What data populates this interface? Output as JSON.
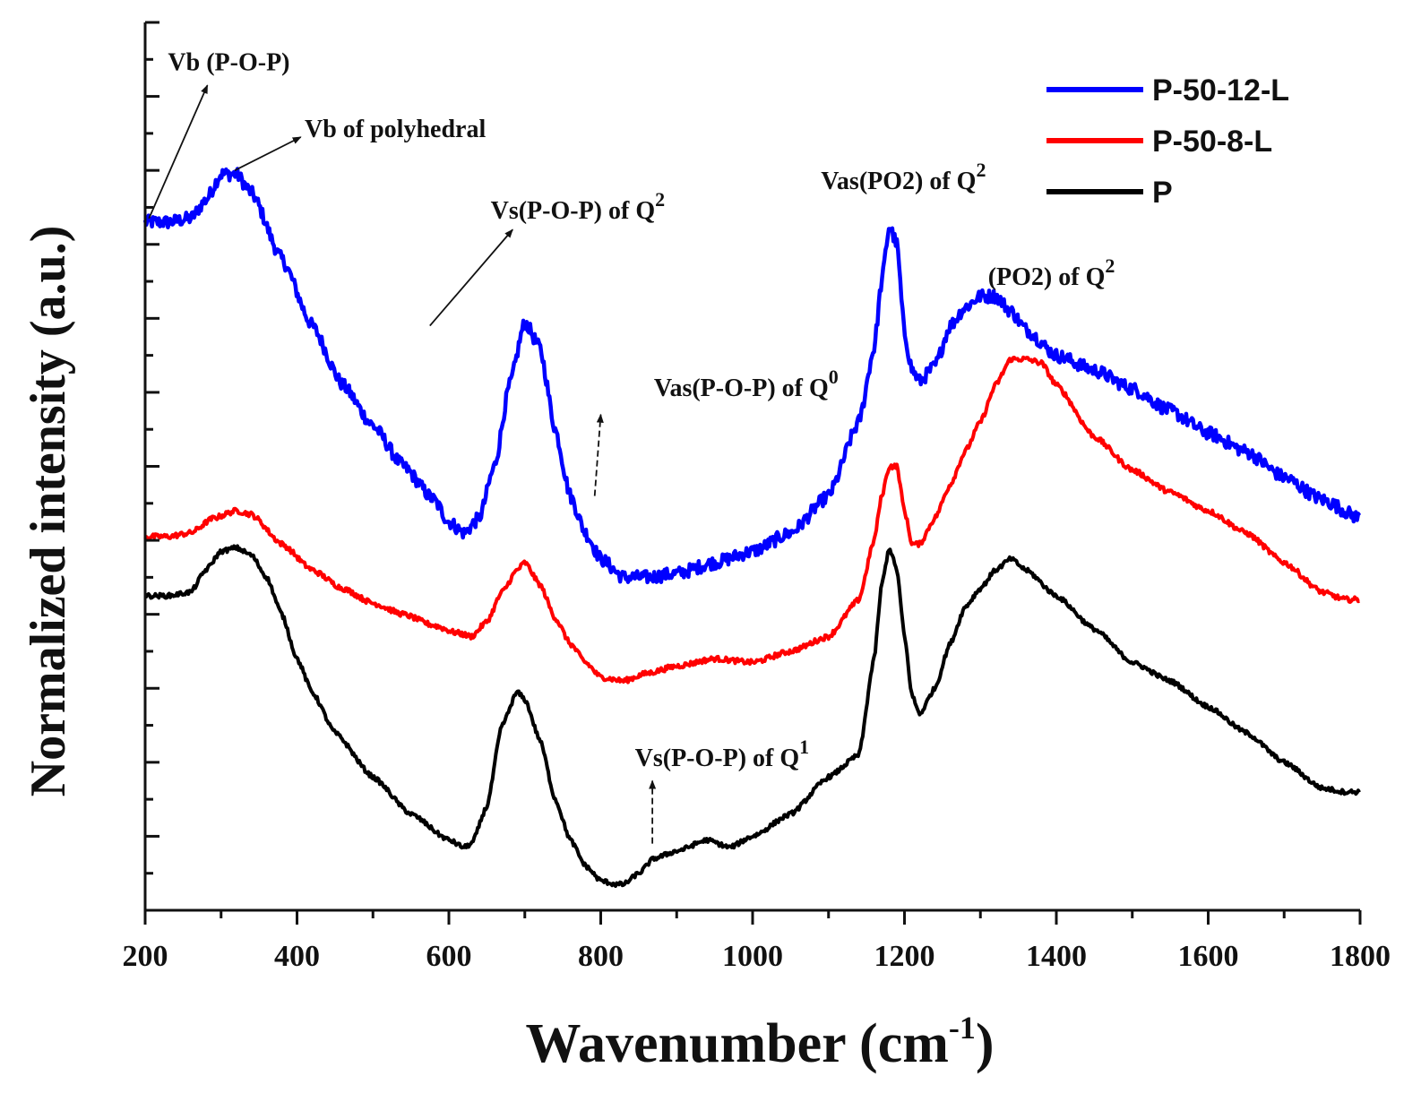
{
  "chart_data": {
    "type": "line",
    "title": "",
    "xlabel": "Wavenumber (cm",
    "xlabel_sup": "-1",
    "xlabel_close": ")",
    "ylabel": "Normalized intensity (a.u.)",
    "xlim": [
      200,
      1800
    ],
    "ylim": [
      0,
      12
    ],
    "x_ticks": [
      200,
      400,
      600,
      800,
      1000,
      1200,
      1400,
      1600,
      1800
    ],
    "grid": false,
    "legend_position": "top-right",
    "series": [
      {
        "name": "P-50-12-L",
        "color": "#0000ff",
        "x": [
          200,
          230,
          260,
          280,
          300,
          320,
          340,
          380,
          420,
          460,
          500,
          540,
          580,
          600,
          620,
          640,
          660,
          680,
          700,
          720,
          740,
          760,
          780,
          800,
          830,
          860,
          900,
          950,
          1000,
          1050,
          1100,
          1140,
          1160,
          1170,
          1180,
          1190,
          1200,
          1210,
          1220,
          1240,
          1260,
          1280,
          1300,
          1320,
          1340,
          1360,
          1400,
          1450,
          1500,
          1550,
          1600,
          1650,
          1700,
          1750,
          1800
        ],
        "values": [
          9.3,
          9.3,
          9.35,
          9.6,
          9.95,
          9.95,
          9.7,
          8.8,
          7.9,
          7.1,
          6.55,
          6.0,
          5.55,
          5.25,
          5.1,
          5.3,
          6.0,
          7.1,
          7.95,
          7.6,
          6.5,
          5.6,
          5.1,
          4.75,
          4.5,
          4.5,
          4.55,
          4.7,
          4.85,
          5.1,
          5.6,
          6.6,
          7.6,
          8.5,
          9.25,
          9.0,
          7.8,
          7.3,
          7.15,
          7.35,
          7.9,
          8.15,
          8.3,
          8.3,
          8.1,
          7.85,
          7.5,
          7.3,
          7.05,
          6.75,
          6.45,
          6.2,
          5.85,
          5.55,
          5.3
        ]
      },
      {
        "name": "P-50-8-L",
        "color": "#ff0000",
        "x": [
          200,
          230,
          260,
          290,
          320,
          340,
          380,
          420,
          460,
          500,
          540,
          580,
          610,
          630,
          650,
          670,
          690,
          700,
          720,
          740,
          760,
          780,
          800,
          830,
          860,
          900,
          950,
          1000,
          1050,
          1100,
          1140,
          1160,
          1170,
          1180,
          1190,
          1200,
          1210,
          1220,
          1240,
          1260,
          1280,
          1300,
          1320,
          1340,
          1360,
          1380,
          1400,
          1450,
          1500,
          1550,
          1600,
          1650,
          1700,
          1750,
          1780,
          1800
        ],
        "values": [
          5.05,
          5.05,
          5.1,
          5.3,
          5.4,
          5.35,
          4.95,
          4.6,
          4.35,
          4.15,
          4.0,
          3.85,
          3.75,
          3.7,
          3.9,
          4.3,
          4.6,
          4.7,
          4.4,
          3.95,
          3.6,
          3.35,
          3.15,
          3.1,
          3.2,
          3.3,
          3.4,
          3.35,
          3.5,
          3.7,
          4.2,
          5.0,
          5.6,
          6.0,
          6.0,
          5.4,
          4.95,
          4.95,
          5.3,
          5.75,
          6.2,
          6.6,
          7.1,
          7.45,
          7.45,
          7.4,
          7.1,
          6.4,
          5.95,
          5.65,
          5.4,
          5.1,
          4.7,
          4.3,
          4.2,
          4.2
        ]
      },
      {
        "name": "P",
        "color": "#000000",
        "x": [
          200,
          230,
          260,
          280,
          300,
          320,
          340,
          360,
          380,
          400,
          420,
          450,
          500,
          550,
          600,
          620,
          630,
          650,
          670,
          690,
          700,
          720,
          740,
          760,
          780,
          800,
          820,
          830,
          850,
          870,
          900,
          940,
          970,
          1000,
          1050,
          1100,
          1140,
          1160,
          1170,
          1180,
          1190,
          1200,
          1210,
          1220,
          1240,
          1260,
          1280,
          1300,
          1320,
          1340,
          1360,
          1400,
          1450,
          1500,
          1550,
          1600,
          1650,
          1700,
          1750,
          1780,
          1800
        ],
        "values": [
          4.25,
          4.25,
          4.3,
          4.6,
          4.85,
          4.9,
          4.8,
          4.5,
          4.0,
          3.4,
          2.95,
          2.4,
          1.8,
          1.3,
          0.95,
          0.85,
          0.9,
          1.4,
          2.5,
          2.95,
          2.85,
          2.3,
          1.5,
          0.95,
          0.6,
          0.4,
          0.35,
          0.35,
          0.5,
          0.7,
          0.8,
          0.95,
          0.85,
          1.0,
          1.3,
          1.8,
          2.1,
          3.4,
          4.4,
          4.9,
          4.6,
          3.7,
          2.9,
          2.65,
          3.0,
          3.6,
          4.1,
          4.35,
          4.6,
          4.75,
          4.6,
          4.25,
          3.8,
          3.35,
          3.1,
          2.75,
          2.4,
          2.0,
          1.65,
          1.6,
          1.6
        ]
      }
    ],
    "annotations": [
      {
        "text": "Vb (P-O-P)",
        "x": 230,
        "y": 11.35
      },
      {
        "text": "Vb of polyhedral",
        "x": 410,
        "y": 10.45
      },
      {
        "text": "Vs(P-O-P) of Q",
        "sup": "2",
        "x": 655,
        "y": 9.35
      },
      {
        "text": "Vas(PO2) of Q",
        "sup": "2",
        "x": 1090,
        "y": 9.75
      },
      {
        "text": "(PO2) of Q",
        "sup": "2",
        "x": 1310,
        "y": 8.45
      },
      {
        "text": "Vas(P-O-P) of Q",
        "sup": "0",
        "x": 870,
        "y": 6.95
      },
      {
        "text": "Vs(P-O-P) of Q",
        "sup": "1",
        "x": 845,
        "y": 1.95
      }
    ]
  }
}
